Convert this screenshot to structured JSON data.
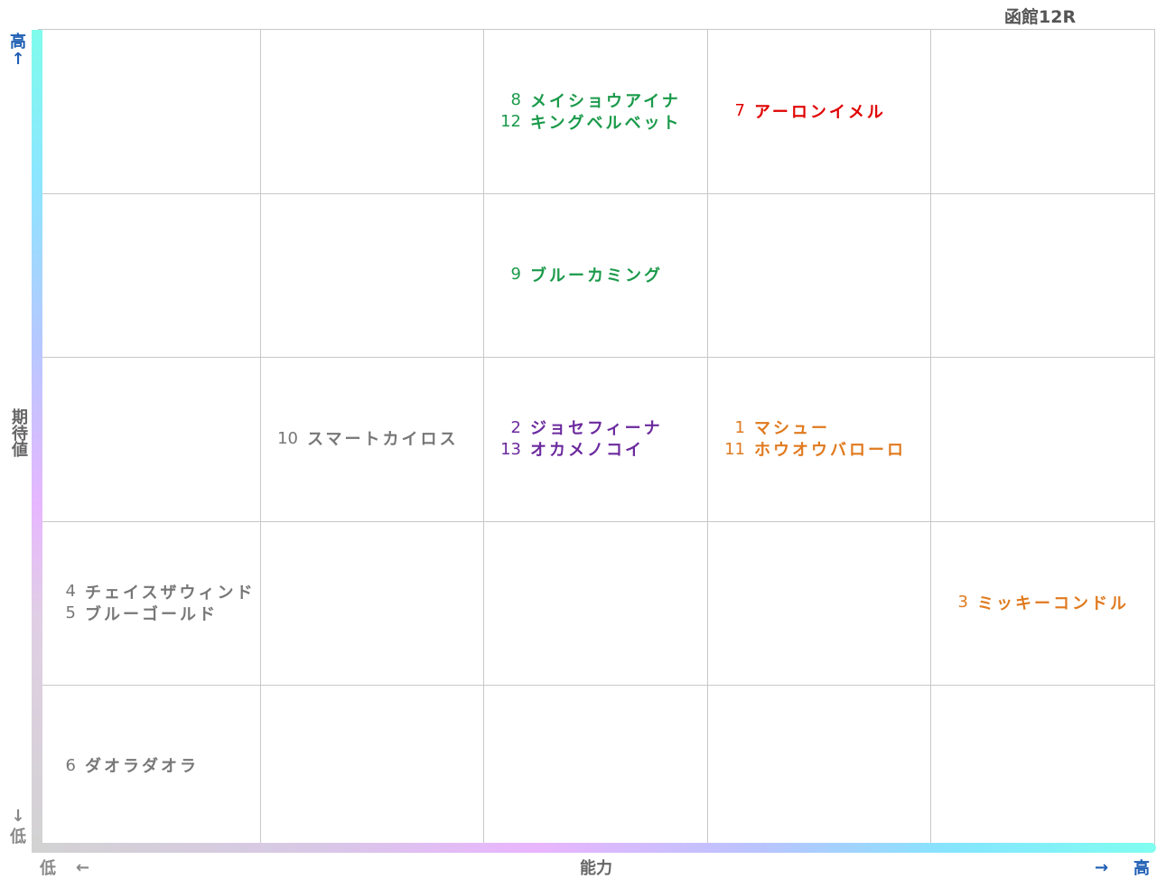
{
  "race": "函館12R",
  "axes": {
    "y_label": "期待値",
    "y_high": "高",
    "y_high_arrow": "↑",
    "y_low": "低",
    "y_low_arrow": "↓",
    "x_label": "能力",
    "x_low": "低",
    "x_low_arrow": "←",
    "x_high": "高",
    "x_high_arrow": "→"
  },
  "colors": {
    "green": "#1a9a4a",
    "red": "#e00000",
    "purple": "#6b2a9e",
    "orange": "#e07a1f",
    "gray": "#777777"
  },
  "chart_data": {
    "type": "table",
    "columns": 5,
    "rows": 5,
    "xlabel": "能力",
    "ylabel": "期待値",
    "cells": [
      {
        "col": 2,
        "row": 0,
        "color": "green",
        "horses": [
          {
            "num": "8",
            "name": "メイショウアイナ"
          },
          {
            "num": "12",
            "name": "キングベルベット"
          }
        ]
      },
      {
        "col": 3,
        "row": 0,
        "color": "red",
        "horses": [
          {
            "num": "7",
            "name": "アーロンイメル"
          }
        ]
      },
      {
        "col": 2,
        "row": 1,
        "color": "green",
        "horses": [
          {
            "num": "9",
            "name": "ブルーカミング"
          }
        ]
      },
      {
        "col": 1,
        "row": 2,
        "color": "gray",
        "horses": [
          {
            "num": "10",
            "name": "スマートカイロス"
          }
        ]
      },
      {
        "col": 2,
        "row": 2,
        "color": "purple",
        "horses": [
          {
            "num": "2",
            "name": "ジョセフィーナ"
          },
          {
            "num": "13",
            "name": "オカメノコイ"
          }
        ]
      },
      {
        "col": 3,
        "row": 2,
        "color": "orange",
        "horses": [
          {
            "num": "1",
            "name": "マシュー"
          },
          {
            "num": "11",
            "name": "ホウオウバローロ"
          }
        ]
      },
      {
        "col": 0,
        "row": 3,
        "color": "gray",
        "horses": [
          {
            "num": "4",
            "name": "チェイスザウィンド"
          },
          {
            "num": "5",
            "name": "ブルーゴールド"
          }
        ]
      },
      {
        "col": 4,
        "row": 3,
        "color": "orange",
        "horses": [
          {
            "num": "3",
            "name": "ミッキーコンドル"
          }
        ]
      },
      {
        "col": 0,
        "row": 4,
        "color": "gray",
        "horses": [
          {
            "num": "6",
            "name": "ダオラダオラ"
          }
        ]
      }
    ]
  }
}
